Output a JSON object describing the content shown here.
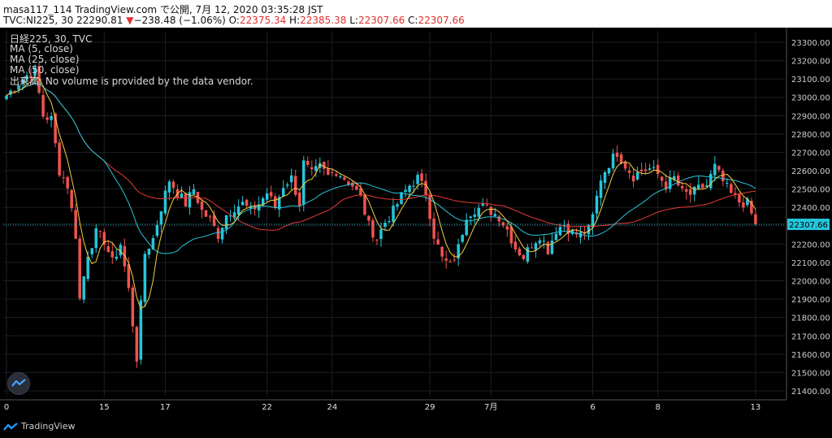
{
  "header": {
    "line1": "masa117_114 TradingView.com で公開, 7月 12, 2020 03:35:28 JST",
    "symbol": "TVC:NI225, 30",
    "last": "22290.81",
    "down_arrow": "▼",
    "change": "−238.48 (−1.06%)",
    "o_label": "O:",
    "o_value": "22375.34",
    "h_label": "H:",
    "h_value": "22385.38",
    "l_label": "L:",
    "l_value": "22307.66",
    "c_label": "C:",
    "c_value": "22307.66"
  },
  "legend": {
    "series": "日経225, 30, TVC",
    "ma5": "MA (5, close)",
    "ma25": "MA (25, close)",
    "ma50": "MA (50, close)",
    "volume_note": "出来高: No volume is provided by the data vendor."
  },
  "price_axis_label": "22307.66",
  "footer": {
    "brand": "TradingView"
  },
  "colors": {
    "up": "#26c6da",
    "down": "#ef5350",
    "ma5": "#f4d03f",
    "ma25": "#26c6da",
    "ma50": "#e53935",
    "grid": "#1c1f26",
    "price_line": "#26c6da"
  },
  "chart_data": {
    "type": "candlestick",
    "ylim": [
      21400,
      23350
    ],
    "y_ticks": [
      21400,
      21500,
      21600,
      21700,
      21800,
      21900,
      22000,
      22100,
      22200,
      22300,
      22400,
      22500,
      22600,
      22700,
      22800,
      22900,
      23000,
      23100,
      23200,
      23300
    ],
    "y_tick_labels": [
      "21400.00",
      "21500.00",
      "21600.00",
      "21700.00",
      "21800.00",
      "21900.00",
      "22000.00",
      "22100.00",
      "22200.00",
      "22300.00",
      "22400.00",
      "22500.00",
      "22600.00",
      "22700.00",
      "22800.00",
      "22900.00",
      "23000.00",
      "23100.00",
      "23200.00",
      "23300.00"
    ],
    "x_labels": [
      "0",
      "15",
      "17",
      "22",
      "24",
      "29",
      "7月",
      "6",
      "8",
      "13"
    ],
    "x_label_bar_index": [
      0,
      24,
      39,
      64,
      80,
      104,
      119,
      144,
      160,
      184
    ],
    "last_price": 22307.66,
    "ma_series": [
      {
        "name": "MA (5, close)",
        "period": 5
      },
      {
        "name": "MA (25, close)",
        "period": 25
      },
      {
        "name": "MA (50, close)",
        "period": 50
      }
    ],
    "anchors": [
      [
        0,
        23010
      ],
      [
        3,
        23080
      ],
      [
        5,
        23120
      ],
      [
        7,
        23140
      ],
      [
        9,
        22900
      ],
      [
        11,
        22880
      ],
      [
        13,
        22600
      ],
      [
        15,
        22520
      ],
      [
        17,
        22250
      ],
      [
        18,
        21900
      ],
      [
        20,
        22150
      ],
      [
        22,
        22260
      ],
      [
        24,
        22220
      ],
      [
        26,
        22100
      ],
      [
        28,
        22200
      ],
      [
        30,
        21950
      ],
      [
        32,
        21580
      ],
      [
        34,
        22150
      ],
      [
        36,
        22230
      ],
      [
        38,
        22400
      ],
      [
        40,
        22550
      ],
      [
        42,
        22480
      ],
      [
        44,
        22420
      ],
      [
        46,
        22500
      ],
      [
        48,
        22380
      ],
      [
        50,
        22330
      ],
      [
        52,
        22250
      ],
      [
        54,
        22360
      ],
      [
        56,
        22400
      ],
      [
        58,
        22420
      ],
      [
        60,
        22380
      ],
      [
        62,
        22420
      ],
      [
        64,
        22480
      ],
      [
        66,
        22400
      ],
      [
        68,
        22520
      ],
      [
        70,
        22560
      ],
      [
        72,
        22420
      ],
      [
        73,
        22640
      ],
      [
        75,
        22580
      ],
      [
        77,
        22620
      ],
      [
        79,
        22570
      ],
      [
        81,
        22600
      ],
      [
        83,
        22560
      ],
      [
        85,
        22520
      ],
      [
        87,
        22450
      ],
      [
        89,
        22300
      ],
      [
        91,
        22230
      ],
      [
        93,
        22320
      ],
      [
        95,
        22380
      ],
      [
        97,
        22460
      ],
      [
        99,
        22520
      ],
      [
        101,
        22560
      ],
      [
        103,
        22480
      ],
      [
        105,
        22250
      ],
      [
        107,
        22120
      ],
      [
        109,
        22080
      ],
      [
        111,
        22180
      ],
      [
        113,
        22360
      ],
      [
        115,
        22390
      ],
      [
        117,
        22400
      ],
      [
        119,
        22380
      ],
      [
        121,
        22350
      ],
      [
        123,
        22280
      ],
      [
        125,
        22180
      ],
      [
        127,
        22130
      ],
      [
        129,
        22200
      ],
      [
        131,
        22250
      ],
      [
        133,
        22170
      ],
      [
        135,
        22280
      ],
      [
        137,
        22310
      ],
      [
        139,
        22260
      ],
      [
        141,
        22250
      ],
      [
        143,
        22280
      ],
      [
        144,
        22350
      ],
      [
        146,
        22560
      ],
      [
        148,
        22640
      ],
      [
        150,
        22700
      ],
      [
        152,
        22630
      ],
      [
        154,
        22570
      ],
      [
        156,
        22600
      ],
      [
        158,
        22610
      ],
      [
        160,
        22580
      ],
      [
        162,
        22520
      ],
      [
        164,
        22560
      ],
      [
        166,
        22480
      ],
      [
        168,
        22470
      ],
      [
        170,
        22500
      ],
      [
        172,
        22520
      ],
      [
        174,
        22620
      ],
      [
        176,
        22540
      ],
      [
        178,
        22470
      ],
      [
        180,
        22430
      ],
      [
        182,
        22420
      ],
      [
        184,
        22307.66
      ]
    ]
  }
}
